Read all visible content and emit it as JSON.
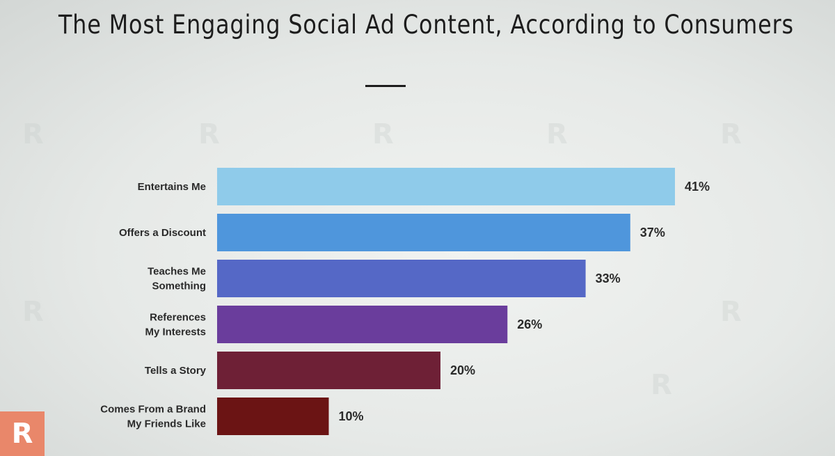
{
  "page": {
    "title": "The Most Engaging Social Ad Content, According to Consumers",
    "logo_letter": "R"
  },
  "chart_data": {
    "type": "bar",
    "orientation": "horizontal",
    "title": "The Most Engaging Social Ad Content, According to Consumers",
    "xlabel": "",
    "ylabel": "",
    "xlim": [
      0,
      41
    ],
    "grid": false,
    "categories": [
      [
        "Entertains Me"
      ],
      [
        "Offers a Discount"
      ],
      [
        "Teaches Me",
        "Something"
      ],
      [
        "References",
        "My Interests"
      ],
      [
        "Tells a Story"
      ],
      [
        "Comes From a Brand",
        "My Friends Like"
      ]
    ],
    "values": [
      41,
      37,
      33,
      26,
      20,
      10
    ],
    "value_labels": [
      "41%",
      "37%",
      "33%",
      "26%",
      "20%",
      "10%"
    ],
    "colors": [
      "#8fcbea",
      "#4f96dc",
      "#5568c6",
      "#6a3d9c",
      "#6e2036",
      "#6b1414"
    ]
  }
}
